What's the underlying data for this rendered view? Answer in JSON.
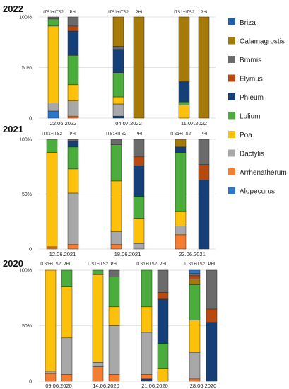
{
  "chart_data": {
    "type": "bar",
    "stacked": true,
    "normalized": true,
    "ytick_labels": [
      "0",
      "50%",
      "100%"
    ],
    "grid": true,
    "legend_position": "right",
    "legend": [
      {
        "name": "Briza",
        "color": "#1f5fa8"
      },
      {
        "name": "Calamagrostis",
        "color": "#a67a08"
      },
      {
        "name": "Bromis",
        "color": "#6b6b6b"
      },
      {
        "name": "Elymus",
        "color": "#b84a10"
      },
      {
        "name": "Phleum",
        "color": "#143f78"
      },
      {
        "name": "Lolium",
        "color": "#4aad3c"
      },
      {
        "name": "Poa",
        "color": "#fdc10b"
      },
      {
        "name": "Dactylis",
        "color": "#a8a8a8"
      },
      {
        "name": "Arrhenatherum",
        "color": "#f47d2f"
      },
      {
        "name": "Alopecurus",
        "color": "#2b78c9"
      }
    ],
    "panels": [
      {
        "title": "2022",
        "groups": [
          {
            "date": "22.06.2022",
            "bars": [
              {
                "label": "ITS1+ITS2",
                "segments": [
                  {
                    "species": "Alopecurus",
                    "value": 7
                  },
                  {
                    "species": "Dactylis",
                    "value": 8
                  },
                  {
                    "species": "Poa",
                    "value": 76
                  },
                  {
                    "species": "Lolium",
                    "value": 7
                  },
                  {
                    "species": "Bromis",
                    "value": 2
                  }
                ]
              },
              {
                "label": "PHI",
                "segments": [
                  {
                    "species": "Arrhenatherum",
                    "value": 2
                  },
                  {
                    "species": "Dactylis",
                    "value": 15
                  },
                  {
                    "species": "Poa",
                    "value": 16
                  },
                  {
                    "species": "Lolium",
                    "value": 29
                  },
                  {
                    "species": "Phleum",
                    "value": 24
                  },
                  {
                    "species": "Elymus",
                    "value": 5
                  },
                  {
                    "species": "Bromis",
                    "value": 9
                  }
                ]
              }
            ]
          },
          {
            "date": "04.07.2022",
            "bars": [
              {
                "label": "ITS1+ITS2",
                "segments": [
                  {
                    "species": "Phleum",
                    "value": 2
                  },
                  {
                    "species": "Dactylis",
                    "value": 12
                  },
                  {
                    "species": "Poa",
                    "value": 7
                  },
                  {
                    "species": "Lolium",
                    "value": 24
                  },
                  {
                    "species": "Phleum",
                    "value": 23
                  },
                  {
                    "species": "Bromis",
                    "value": 3
                  },
                  {
                    "species": "Calamagrostis",
                    "value": 29
                  }
                ]
              },
              {
                "label": "PHI",
                "segments": [
                  {
                    "species": "Calamagrostis",
                    "value": 100
                  }
                ]
              }
            ]
          },
          {
            "date": "11.07.2022",
            "bars": [
              {
                "label": "ITS1+ITS2",
                "segments": [
                  {
                    "species": "Poa",
                    "value": 13
                  },
                  {
                    "species": "Lolium",
                    "value": 3
                  },
                  {
                    "species": "Phleum",
                    "value": 20
                  },
                  {
                    "species": "Calamagrostis",
                    "value": 64
                  }
                ]
              },
              {
                "label": "PHI",
                "segments": [
                  {
                    "species": "Calamagrostis",
                    "value": 100
                  }
                ]
              }
            ]
          }
        ]
      },
      {
        "title": "2021",
        "groups": [
          {
            "date": "12.06.2021",
            "bars": [
              {
                "label": "ITS1+ITS2",
                "segments": [
                  {
                    "species": "Arrhenatherum",
                    "value": 2
                  },
                  {
                    "species": "Poa",
                    "value": 86
                  },
                  {
                    "species": "Lolium",
                    "value": 12
                  }
                ]
              },
              {
                "label": "PHI",
                "segments": [
                  {
                    "species": "Arrhenatherum",
                    "value": 4
                  },
                  {
                    "species": "Dactylis",
                    "value": 47
                  },
                  {
                    "species": "Poa",
                    "value": 22
                  },
                  {
                    "species": "Lolium",
                    "value": 20
                  },
                  {
                    "species": "Phleum",
                    "value": 5
                  },
                  {
                    "species": "Bromis",
                    "value": 2
                  }
                ]
              }
            ]
          },
          {
            "date": "18.06.2021",
            "bars": [
              {
                "label": "ITS1+ITS2",
                "segments": [
                  {
                    "species": "Arrhenatherum",
                    "value": 4
                  },
                  {
                    "species": "Dactylis",
                    "value": 12
                  },
                  {
                    "species": "Poa",
                    "value": 46
                  },
                  {
                    "species": "Lolium",
                    "value": 33
                  },
                  {
                    "species": "Bromis",
                    "value": 5
                  }
                ]
              },
              {
                "label": "PHI",
                "segments": [
                  {
                    "species": "Dactylis",
                    "value": 5
                  },
                  {
                    "species": "Poa",
                    "value": 23
                  },
                  {
                    "species": "Lolium",
                    "value": 20
                  },
                  {
                    "species": "Phleum",
                    "value": 28
                  },
                  {
                    "species": "Elymus",
                    "value": 8
                  },
                  {
                    "species": "Bromis",
                    "value": 16
                  }
                ]
              }
            ]
          },
          {
            "date": "23.06.2021",
            "bars": [
              {
                "label": "ITS1+ITS2",
                "segments": [
                  {
                    "species": "Arrhenatherum",
                    "value": 13
                  },
                  {
                    "species": "Dactylis",
                    "value": 8
                  },
                  {
                    "species": "Poa",
                    "value": 13
                  },
                  {
                    "species": "Lolium",
                    "value": 54
                  },
                  {
                    "species": "Phleum",
                    "value": 5
                  },
                  {
                    "species": "Calamagrostis",
                    "value": 7
                  }
                ]
              },
              {
                "label": "PHI",
                "segments": [
                  {
                    "species": "Phleum",
                    "value": 63
                  },
                  {
                    "species": "Elymus",
                    "value": 14
                  },
                  {
                    "species": "Bromis",
                    "value": 23
                  }
                ]
              }
            ]
          }
        ]
      },
      {
        "title": "2020",
        "groups": [
          {
            "date": "09.06.2020",
            "bars": [
              {
                "label": "ITS1+ITS2",
                "segments": [
                  {
                    "species": "Arrhenatherum",
                    "value": 7
                  },
                  {
                    "species": "Dactylis",
                    "value": 2
                  },
                  {
                    "species": "Poa",
                    "value": 91
                  }
                ]
              },
              {
                "label": "PHI",
                "segments": [
                  {
                    "species": "Arrhenatherum",
                    "value": 6
                  },
                  {
                    "species": "Dactylis",
                    "value": 33
                  },
                  {
                    "species": "Poa",
                    "value": 46
                  },
                  {
                    "species": "Lolium",
                    "value": 15
                  }
                ]
              }
            ]
          },
          {
            "date": "14.06.2020",
            "bars": [
              {
                "label": "ITS1+ITS2",
                "segments": [
                  {
                    "species": "Arrhenatherum",
                    "value": 13
                  },
                  {
                    "species": "Dactylis",
                    "value": 4
                  },
                  {
                    "species": "Poa",
                    "value": 79
                  },
                  {
                    "species": "Lolium",
                    "value": 4
                  }
                ]
              },
              {
                "label": "PHI",
                "segments": [
                  {
                    "species": "Arrhenatherum",
                    "value": 6
                  },
                  {
                    "species": "Dactylis",
                    "value": 44
                  },
                  {
                    "species": "Poa",
                    "value": 17
                  },
                  {
                    "species": "Lolium",
                    "value": 27
                  },
                  {
                    "species": "Bromis",
                    "value": 6
                  }
                ]
              }
            ]
          },
          {
            "date": "21.06.2020",
            "bars": [
              {
                "label": "ITS1+ITS2",
                "segments": [
                  {
                    "species": "Phleum",
                    "value": 2
                  },
                  {
                    "species": "Arrhenatherum",
                    "value": 4
                  },
                  {
                    "species": "Dactylis",
                    "value": 38
                  },
                  {
                    "species": "Poa",
                    "value": 23
                  },
                  {
                    "species": "Lolium",
                    "value": 33
                  }
                ]
              },
              {
                "label": "PHI",
                "segments": [
                  {
                    "species": "Poa",
                    "value": 11
                  },
                  {
                    "species": "Lolium",
                    "value": 23
                  },
                  {
                    "species": "Phleum",
                    "value": 40
                  },
                  {
                    "species": "Elymus",
                    "value": 6
                  },
                  {
                    "species": "Bromis",
                    "value": 20
                  }
                ]
              }
            ]
          },
          {
            "date": "28.06.2020",
            "bars": [
              {
                "label": "ITS1+ITS2",
                "segments": [
                  {
                    "species": "Arrhenatherum",
                    "value": 2
                  },
                  {
                    "species": "Dactylis",
                    "value": 24
                  },
                  {
                    "species": "Poa",
                    "value": 29
                  },
                  {
                    "species": "Lolium",
                    "value": 32
                  },
                  {
                    "species": "Calamagrostis",
                    "value": 5
                  },
                  {
                    "species": "Elymus",
                    "value": 3
                  },
                  {
                    "species": "Bromis",
                    "value": 2
                  },
                  {
                    "species": "Alopecurus",
                    "value": 3
                  }
                ]
              },
              {
                "label": "PHI",
                "segments": [
                  {
                    "species": "Phleum",
                    "value": 53
                  },
                  {
                    "species": "Elymus",
                    "value": 12
                  },
                  {
                    "species": "Bromis",
                    "value": 35
                  }
                ]
              }
            ]
          }
        ]
      }
    ]
  }
}
